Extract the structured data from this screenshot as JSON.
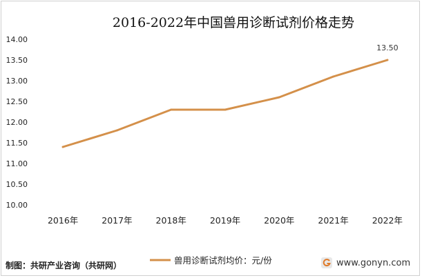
{
  "chart_data": {
    "type": "line",
    "title": "2016-2022年中国兽用诊断试剂价格走势",
    "categories": [
      "2016年",
      "2017年",
      "2018年",
      "2019年",
      "2020年",
      "2021年",
      "2022年"
    ],
    "series": [
      {
        "name": "兽用诊断试剂均价：元/份",
        "values": [
          11.4,
          11.8,
          12.3,
          12.3,
          12.6,
          13.1,
          13.5
        ],
        "color": "#d4904a"
      }
    ],
    "data_labels": [
      {
        "category": "2022年",
        "text": "13.50"
      }
    ],
    "yticks": [
      "10.00",
      "10.50",
      "11.00",
      "11.50",
      "12.00",
      "12.50",
      "13.00",
      "13.50",
      "14.00"
    ],
    "ylim": [
      10,
      14
    ],
    "grid": false,
    "legend": "bottom"
  },
  "footer": {
    "source": "制图：共研产业咨询（共研网）",
    "site": "www.gonyn.com",
    "logo_icon": "gonyn-logo-icon"
  }
}
